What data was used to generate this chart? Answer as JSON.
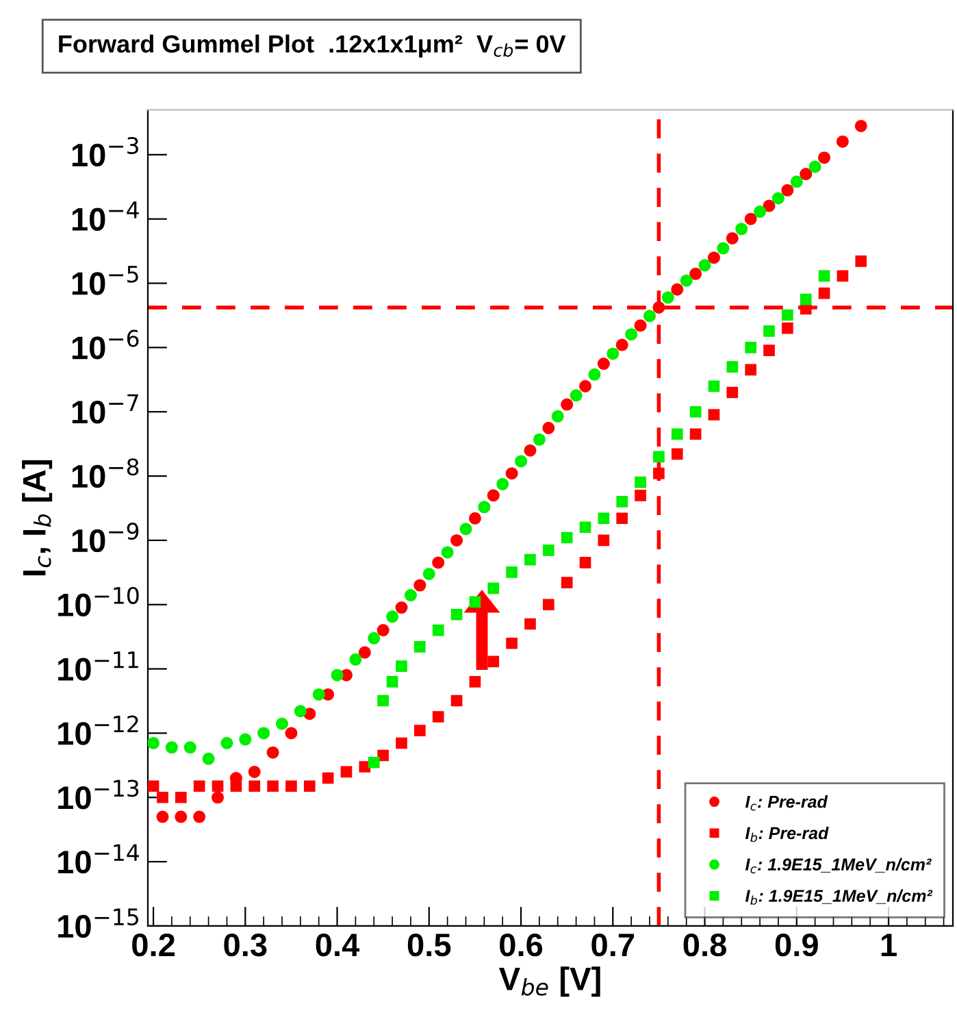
{
  "chart_data": {
    "type": "scatter",
    "title": "Forward Gummel Plot  .12x1x1μm²  V$_{cb}$= 0V",
    "xlabel": "V$_{be}$ [V]",
    "ylabel": "I$_{c}$, I$_{b}$ [A]",
    "log": "y",
    "xlim": [
      0.194,
      1.07
    ],
    "ylim": [
      1e-15,
      0.005
    ],
    "xticks": [
      0.2,
      0.3,
      0.4,
      0.5,
      0.6,
      0.7,
      0.8,
      0.9,
      {
        "value": 1.0,
        "label": "1"
      }
    ],
    "yticks": [
      {
        "value": 1e-15,
        "label": "10$^{−15}$"
      },
      {
        "value": 1e-14,
        "label": "10$^{−14}$"
      },
      {
        "value": 1e-13,
        "label": "10$^{−13}$"
      },
      {
        "value": 1e-12,
        "label": "10$^{−12}$"
      },
      {
        "value": 1e-11,
        "label": "10$^{−11}$"
      },
      {
        "value": 1e-10,
        "label": "10$^{−10}$"
      },
      {
        "value": 1e-09,
        "label": "10$^{−9}$"
      },
      {
        "value": 1e-08,
        "label": "10$^{−8}$"
      },
      {
        "value": 1e-07,
        "label": "10$^{−7}$"
      },
      {
        "value": 1e-06,
        "label": "10$^{−6}$"
      },
      {
        "value": 1e-05,
        "label": "10$^{−5}$"
      },
      {
        "value": 0.0001,
        "label": "10$^{−4}$"
      },
      {
        "value": 0.001,
        "label": "10$^{−3}$"
      }
    ],
    "grid": false,
    "legend": "bottom right",
    "series": [
      {
        "name": "I$_{c}$: Pre-rad",
        "color": "#ff0000",
        "marker": "circle",
        "x": [
          0.21,
          0.23,
          0.25,
          0.27,
          0.29,
          0.31,
          0.33,
          0.35,
          0.37,
          0.39,
          0.41,
          0.43,
          0.45,
          0.47,
          0.49,
          0.51,
          0.53,
          0.55,
          0.57,
          0.59,
          0.61,
          0.63,
          0.65,
          0.67,
          0.69,
          0.71,
          0.73,
          0.75,
          0.77,
          0.79,
          0.81,
          0.83,
          0.85,
          0.87,
          0.89,
          0.91,
          0.93,
          0.95,
          0.97
        ],
        "values": [
          5e-14,
          5e-14,
          5e-14,
          1e-13,
          2e-13,
          2.5e-13,
          5e-13,
          1e-12,
          2e-12,
          4e-12,
          8e-12,
          1.8e-11,
          4e-11,
          9e-11,
          2e-10,
          4.5e-10,
          1e-09,
          2.2e-09,
          5e-09,
          1.1e-08,
          2.5e-08,
          5.6e-08,
          1.3e-07,
          2.5e-07,
          5.6e-07,
          1.1e-06,
          2.2e-06,
          4.2e-06,
          8e-06,
          1.4e-05,
          2.5e-05,
          5e-05,
          0.0001,
          0.00016,
          0.00028,
          0.0005,
          0.0009,
          0.0016,
          0.0028
        ]
      },
      {
        "name": "I$_{b}$: Pre-rad",
        "color": "#ff0000",
        "marker": "square",
        "x": [
          0.2,
          0.21,
          0.23,
          0.25,
          0.27,
          0.29,
          0.31,
          0.33,
          0.35,
          0.37,
          0.39,
          0.41,
          0.43,
          0.45,
          0.47,
          0.49,
          0.51,
          0.53,
          0.55,
          0.57,
          0.59,
          0.61,
          0.63,
          0.65,
          0.67,
          0.69,
          0.71,
          0.73,
          0.75,
          0.77,
          0.79,
          0.81,
          0.83,
          0.85,
          0.87,
          0.89,
          0.91,
          0.93,
          0.95,
          0.97
        ],
        "values": [
          1.5e-13,
          1e-13,
          1e-13,
          1.5e-13,
          1.5e-13,
          1.5e-13,
          1.5e-13,
          1.5e-13,
          1.5e-13,
          1.5e-13,
          2e-13,
          2.5e-13,
          3e-13,
          4.5e-13,
          7e-13,
          1.1e-12,
          1.8e-12,
          3.2e-12,
          6.3e-12,
          1.3e-11,
          2.5e-11,
          5e-11,
          1e-10,
          2.2e-10,
          4.5e-10,
          1e-09,
          2.2e-09,
          5e-09,
          1.1e-08,
          2.2e-08,
          4.5e-08,
          9e-08,
          2e-07,
          4.5e-07,
          9e-07,
          2e-06,
          4e-06,
          7e-06,
          1.3e-05,
          2.2e-05
        ]
      },
      {
        "name": "I$_{c}$: 1.9E15_1MeV_n/cm²",
        "color": "#00ee00",
        "marker": "circle",
        "x": [
          0.2,
          0.22,
          0.24,
          0.26,
          0.28,
          0.3,
          0.32,
          0.34,
          0.36,
          0.38,
          0.4,
          0.42,
          0.44,
          0.46,
          0.48,
          0.5,
          0.52,
          0.54,
          0.56,
          0.58,
          0.6,
          0.62,
          0.64,
          0.66,
          0.68,
          0.7,
          0.72,
          0.74,
          0.76,
          0.78,
          0.8,
          0.82,
          0.84,
          0.86,
          0.88,
          0.9,
          0.92
        ],
        "values": [
          7e-13,
          6e-13,
          6e-13,
          4e-13,
          7e-13,
          8e-13,
          1e-12,
          1.4e-12,
          2.2e-12,
          4e-12,
          8e-12,
          1.4e-11,
          3e-11,
          6.5e-11,
          1.4e-10,
          3e-10,
          6.5e-10,
          1.5e-09,
          3.3e-09,
          7.5e-09,
          1.7e-08,
          3.7e-08,
          8.5e-08,
          1.8e-07,
          3.8e-07,
          8e-07,
          1.6e-06,
          3.1e-06,
          6e-06,
          1.1e-05,
          1.9e-05,
          3.5e-05,
          7e-05,
          0.00013,
          0.00021,
          0.00038,
          0.00065
        ]
      },
      {
        "name": "I$_{b}$: 1.9E15_1MeV_n/cm²",
        "color": "#00ee00",
        "marker": "square",
        "x": [
          0.44,
          0.45,
          0.46,
          0.47,
          0.49,
          0.51,
          0.53,
          0.55,
          0.57,
          0.59,
          0.61,
          0.63,
          0.65,
          0.67,
          0.69,
          0.71,
          0.73,
          0.75,
          0.77,
          0.79,
          0.81,
          0.83,
          0.85,
          0.87,
          0.89,
          0.91,
          0.93
        ],
        "values": [
          3.5e-13,
          3.2e-12,
          6.3e-12,
          1.1e-11,
          2.2e-11,
          4e-11,
          7e-11,
          1.1e-10,
          1.8e-10,
          3.2e-10,
          5e-10,
          7e-10,
          1.1e-09,
          1.6e-09,
          2.2e-09,
          4e-09,
          8e-09,
          2e-08,
          4.5e-08,
          1e-07,
          2.5e-07,
          5e-07,
          1e-06,
          1.8e-06,
          3.2e-06,
          5.6e-06,
          1.3e-05
        ]
      }
    ],
    "ref_lines": [
      {
        "axis": "x",
        "value": 0.75,
        "color": "#ff0000",
        "line_style": "dashed"
      },
      {
        "axis": "y",
        "value": 4.2e-06,
        "color": "#ff0000",
        "line_style": "dashed"
      }
    ]
  }
}
